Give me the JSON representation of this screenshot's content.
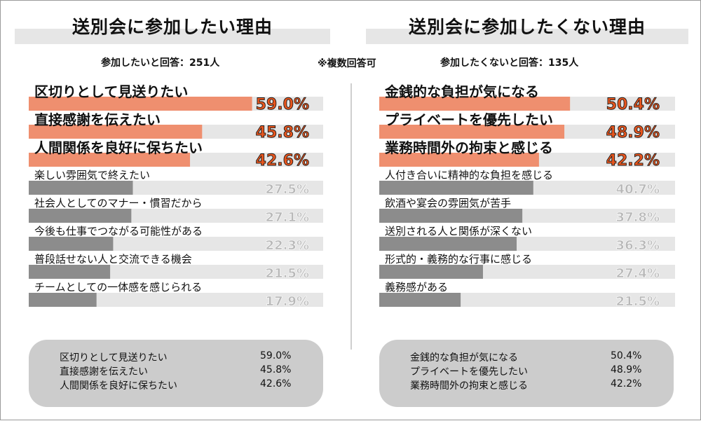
{
  "left": {
    "title": "送別会に参加したい理由",
    "respondents": "参加したいと回答：251人",
    "items": [
      {
        "label": "区切りとして見送りたい",
        "value": 59.0,
        "value_text": "59.0%",
        "highlight": true
      },
      {
        "label": "直接感謝を伝えたい",
        "value": 45.8,
        "value_text": "45.8%",
        "highlight": true
      },
      {
        "label": "人間関係を良好に保ちたい",
        "value": 42.6,
        "value_text": "42.6%",
        "highlight": true
      },
      {
        "label": "楽しい雰囲気で終えたい",
        "value": 27.5,
        "value_text": "27.5%",
        "highlight": false
      },
      {
        "label": "社会人としてのマナー・慣習だから",
        "value": 27.1,
        "value_text": "27.1%",
        "highlight": false
      },
      {
        "label": "今後も仕事でつながる可能性がある",
        "value": 22.3,
        "value_text": "22.3%",
        "highlight": false
      },
      {
        "label": "普段話せない人と交流できる機会",
        "value": 21.5,
        "value_text": "21.5%",
        "highlight": false
      },
      {
        "label": "チームとしての一体感を感じられる",
        "value": 17.9,
        "value_text": "17.9%",
        "highlight": false
      }
    ],
    "summary": [
      {
        "label": "区切りとして見送りたい",
        "value": "59.0%"
      },
      {
        "label": "直接感謝を伝えたい",
        "value": "45.8%"
      },
      {
        "label": "人間関係を良好に保ちたい",
        "value": "42.6%"
      }
    ]
  },
  "right": {
    "title": "送別会に参加したくない理由",
    "respondents": "参加したくないと回答：135人",
    "items": [
      {
        "label": "金銭的な負担が気になる",
        "value": 50.4,
        "value_text": "50.4%",
        "highlight": true
      },
      {
        "label": "プライベートを優先したい",
        "value": 48.9,
        "value_text": "48.9%",
        "highlight": true
      },
      {
        "label": "業務時間外の拘束と感じる",
        "value": 42.2,
        "value_text": "42.2%",
        "highlight": true
      },
      {
        "label": "人付き合いに精神的な負担を感じる",
        "value": 40.7,
        "value_text": "40.7%",
        "highlight": false
      },
      {
        "label": "飲酒や宴会の雰囲気が苦手",
        "value": 37.8,
        "value_text": "37.8%",
        "highlight": false
      },
      {
        "label": "送別される人と関係が深くない",
        "value": 36.3,
        "value_text": "36.3%",
        "highlight": false
      },
      {
        "label": "形式的・義務的な行事に感じる",
        "value": 27.4,
        "value_text": "27.4%",
        "highlight": false
      },
      {
        "label": "義務感がある",
        "value": 21.5,
        "value_text": "21.5%",
        "highlight": false
      }
    ],
    "summary": [
      {
        "label": "金銭的な負担が気になる",
        "value": "50.4%"
      },
      {
        "label": "プライベートを優先したい",
        "value": "48.9%"
      },
      {
        "label": "業務時間外の拘束と感じる",
        "value": "42.2%"
      }
    ]
  },
  "note": "※複数回答可",
  "colors": {
    "highlight_bar": "#ef8f6f",
    "normal_bar": "#8c8c8c",
    "track": "#e6e6e6",
    "highlight_value": "#e8561e",
    "normal_value": "#b8b8b8",
    "summary_bg": "#cccccc"
  },
  "chart_data": [
    {
      "type": "bar",
      "title": "送別会に参加したい理由",
      "subtitle": "参加したいと回答：251人",
      "categories": [
        "区切りとして見送りたい",
        "直接感謝を伝えたい",
        "人間関係を良好に保ちたい",
        "楽しい雰囲気で終えたい",
        "社会人としてのマナー・慣習だから",
        "今後も仕事でつながる可能性がある",
        "普段話せない人と交流できる機会",
        "チームとしての一体感を感じられる"
      ],
      "values": [
        59.0,
        45.8,
        42.6,
        27.5,
        27.1,
        22.3,
        21.5,
        17.9
      ],
      "xlim": [
        0,
        100
      ],
      "orientation": "horizontal"
    },
    {
      "type": "bar",
      "title": "送別会に参加したくない理由",
      "subtitle": "参加したくないと回答：135人",
      "categories": [
        "金銭的な負担が気になる",
        "プライベートを優先したい",
        "業務時間外の拘束と感じる",
        "人付き合いに精神的な負担を感じる",
        "飲酒や宴会の雰囲気が苦手",
        "送別される人と関係が深くない",
        "形式的・義務的な行事に感じる",
        "義務感がある"
      ],
      "values": [
        50.4,
        48.9,
        42.2,
        40.7,
        37.8,
        36.3,
        27.4,
        21.5
      ],
      "xlim": [
        0,
        100
      ],
      "orientation": "horizontal"
    }
  ]
}
